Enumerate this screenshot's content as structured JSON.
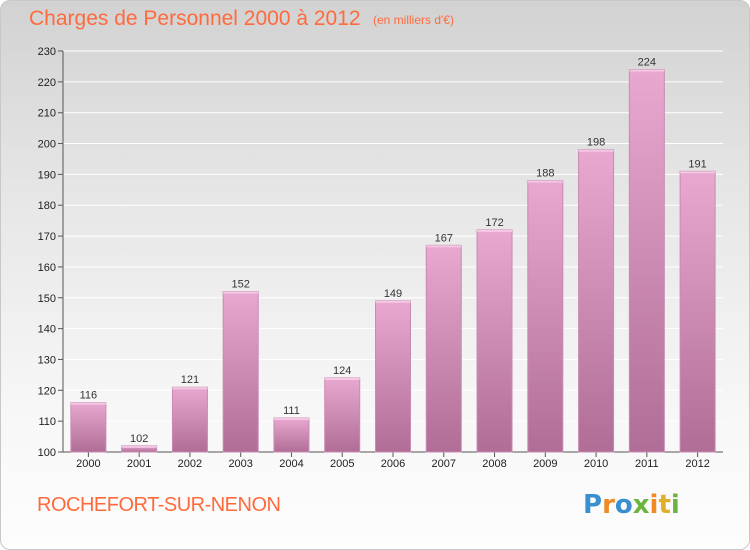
{
  "header": {
    "title": "Charges de Personnel 2000 à 2012",
    "subtitle": "(en milliers d'€)"
  },
  "footer": {
    "city": "ROCHEFORT-SUR-NENON",
    "logo": {
      "text": "Proxiti",
      "letters": [
        {
          "char": "P",
          "color": "#3a8fd0"
        },
        {
          "char": "r",
          "color": "#f08a24"
        },
        {
          "char": "o",
          "color": "#3a8fd0"
        },
        {
          "char": "x",
          "color": "#6db33f"
        },
        {
          "char": "i",
          "color": "#f08a24"
        },
        {
          "char": "t",
          "color": "#e0b02a"
        },
        {
          "char": "i",
          "color": "#6db33f"
        }
      ]
    }
  },
  "colors": {
    "title": "#ff6a3d",
    "bar_top": "#e8a8d0",
    "bar_bottom": "#b06e96",
    "grid": "#ffffff"
  },
  "chart_data": {
    "type": "bar",
    "title": "Charges de Personnel 2000 à 2012",
    "subtitle": "(en milliers d'€)",
    "xlabel": "",
    "ylabel": "",
    "ylim": [
      100,
      230
    ],
    "yticks": [
      100,
      110,
      120,
      130,
      140,
      150,
      160,
      170,
      180,
      190,
      200,
      210,
      220,
      230
    ],
    "grid": true,
    "categories": [
      "2000",
      "2001",
      "2002",
      "2003",
      "2004",
      "2005",
      "2006",
      "2007",
      "2008",
      "2009",
      "2010",
      "2011",
      "2012"
    ],
    "values": [
      116,
      102,
      121,
      152,
      111,
      124,
      149,
      167,
      172,
      188,
      198,
      224,
      191
    ]
  }
}
